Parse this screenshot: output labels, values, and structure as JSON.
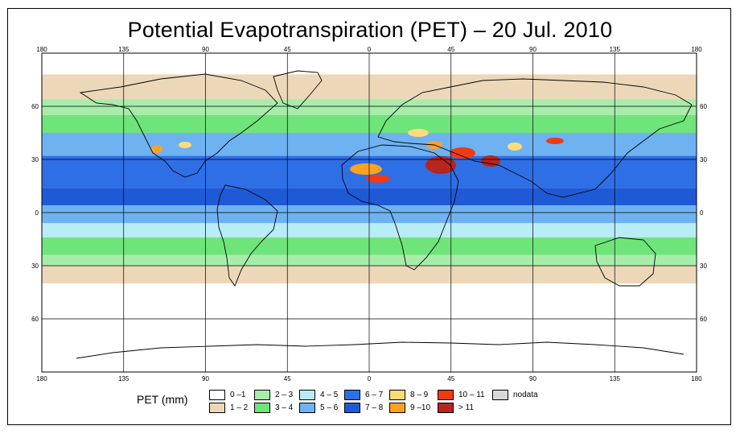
{
  "title": "Potential Evapotranspiration (PET) – 20 Jul. 2010",
  "axes": {
    "lon_ticks": [
      "180",
      "135",
      "90",
      "45",
      "0",
      "45",
      "90",
      "135",
      "180"
    ],
    "lat_ticks": [
      "60",
      "30",
      "0",
      "30",
      "60"
    ]
  },
  "legend": {
    "title": "PET (mm)",
    "items": [
      {
        "label": "0 –1",
        "color": "#ffffff"
      },
      {
        "label": "1 – 2",
        "color": "#ecd8b8"
      },
      {
        "label": "2 – 3",
        "color": "#a8ecaa"
      },
      {
        "label": "3 – 4",
        "color": "#6fe47a"
      },
      {
        "label": "4 – 5",
        "color": "#b8ecf6"
      },
      {
        "label": "5 – 6",
        "color": "#6fb2f2"
      },
      {
        "label": "6 – 7",
        "color": "#2f6fe6"
      },
      {
        "label": "7 – 8",
        "color": "#1f5ad6"
      },
      {
        "label": "8 – 9",
        "color": "#ffdc78"
      },
      {
        "label": "9 –10",
        "color": "#ffa21f"
      },
      {
        "label": "10 – 11",
        "color": "#f03a14"
      },
      {
        "label": "> 11",
        "color": "#b8241e"
      },
      {
        "label": "nodata",
        "color": "#d8d8d8"
      }
    ]
  }
}
